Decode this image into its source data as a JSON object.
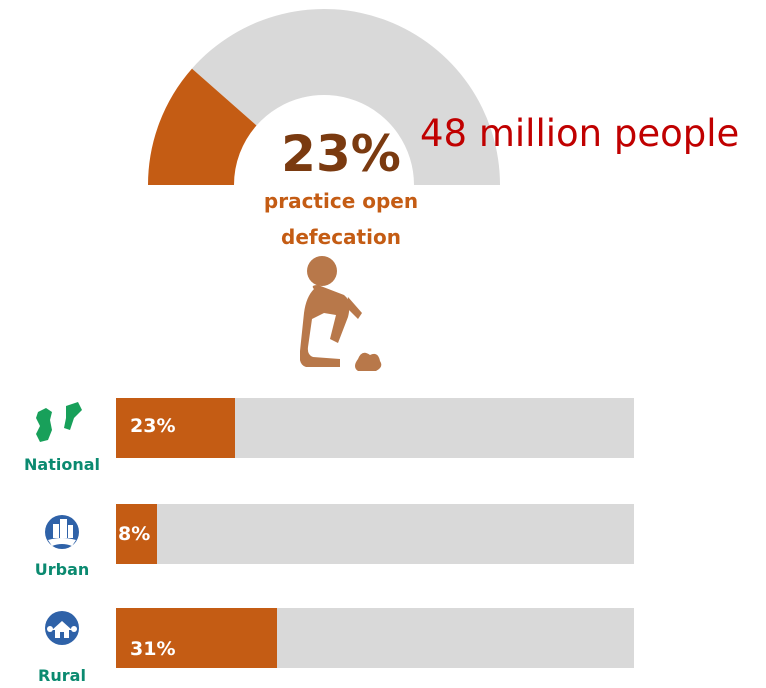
{
  "headline": {
    "percent": "23%",
    "people": "48 million people",
    "description": "practice open defecation"
  },
  "colors": {
    "accent": "#c45c14",
    "track": "#d9d9d9",
    "people_text": "#c00000",
    "percent_text": "#7a3a10",
    "person_icon": "#b8784a",
    "label_green": "#0b8a70",
    "nigeria_green": "#18a05a",
    "icon_blue": "#2f62a8"
  },
  "icons": {
    "hero": "squatting-person-icon",
    "national": "nigeria-map-icon",
    "urban": "city-icon",
    "rural": "house-icon"
  },
  "chart_data": [
    {
      "type": "gauge",
      "value": 23,
      "max": 100,
      "label": "23%"
    },
    {
      "type": "bar",
      "orientation": "horizontal",
      "categories": [
        "National",
        "Urban",
        "Rural"
      ],
      "values": [
        23,
        8,
        31
      ],
      "labels": [
        "23%",
        "8%",
        "31%"
      ],
      "xlim": [
        0,
        100
      ]
    }
  ]
}
